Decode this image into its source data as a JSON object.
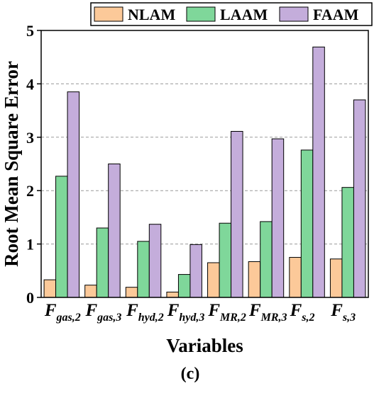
{
  "chart_data": {
    "type": "bar",
    "panel_label": "(c)",
    "xlabel": "Variables",
    "ylabel": "Root Mean Square Error",
    "ylim": [
      0,
      5
    ],
    "yticks": [
      "0",
      "1",
      "2",
      "3",
      "4",
      "5"
    ],
    "grid": "horizontal dashed",
    "legend_position": "top",
    "categories": [
      {
        "main": "F",
        "sub": "gas,2"
      },
      {
        "main": "F",
        "sub": "gas,3"
      },
      {
        "main": "F",
        "sub": "hyd,2"
      },
      {
        "main": "F",
        "sub": "hyd,3"
      },
      {
        "main": "F",
        "sub": "MR,2"
      },
      {
        "main": "F",
        "sub": "MR,3"
      },
      {
        "main": "F",
        "sub": "s,2"
      },
      {
        "main": "F",
        "sub": "s,3"
      }
    ],
    "series": [
      {
        "name": "NLAM",
        "color": "#fcc999",
        "values": [
          0.33,
          0.23,
          0.19,
          0.1,
          0.65,
          0.67,
          0.75,
          0.72
        ]
      },
      {
        "name": "LAAM",
        "color": "#7fd79a",
        "values": [
          2.27,
          1.3,
          1.05,
          0.43,
          1.39,
          1.42,
          2.76,
          2.06
        ]
      },
      {
        "name": "FAAM",
        "color": "#c4addb",
        "values": [
          3.85,
          2.5,
          1.37,
          0.99,
          3.11,
          2.97,
          4.69,
          3.7
        ]
      }
    ]
  }
}
